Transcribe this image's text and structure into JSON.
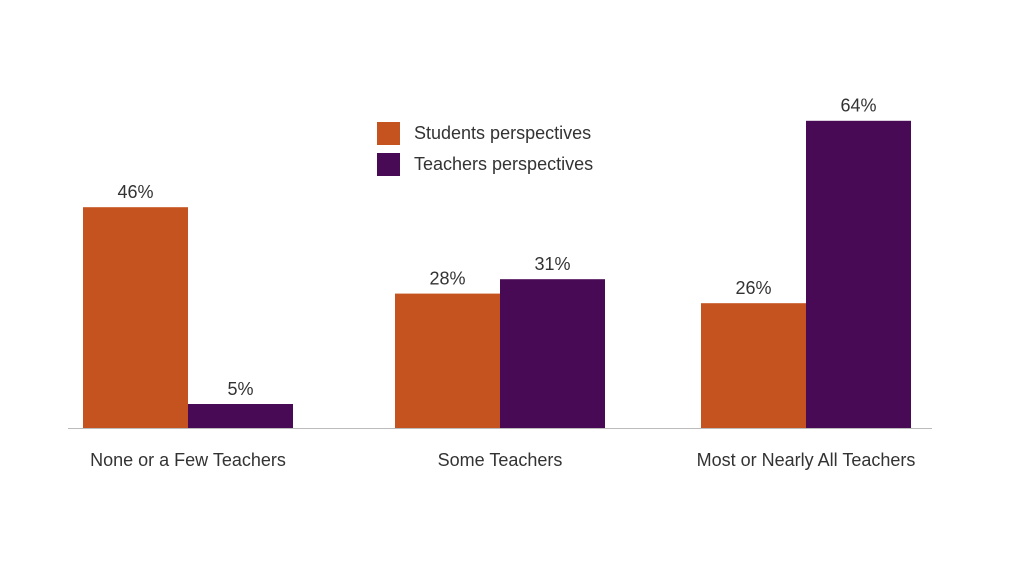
{
  "chart_data": {
    "type": "bar",
    "categories": [
      "None or a Few Teachers",
      "Some Teachers",
      "Most or Nearly All Teachers"
    ],
    "series": [
      {
        "name": "Students perspectives",
        "color": "#c4531f",
        "values": [
          46,
          28,
          26
        ],
        "value_labels": [
          "46%",
          "28%",
          "26%"
        ]
      },
      {
        "name": "Teachers perspectives",
        "color": "#490a55",
        "values": [
          5,
          31,
          64
        ],
        "value_labels": [
          "5%",
          "31%",
          "64%"
        ]
      }
    ]
  }
}
